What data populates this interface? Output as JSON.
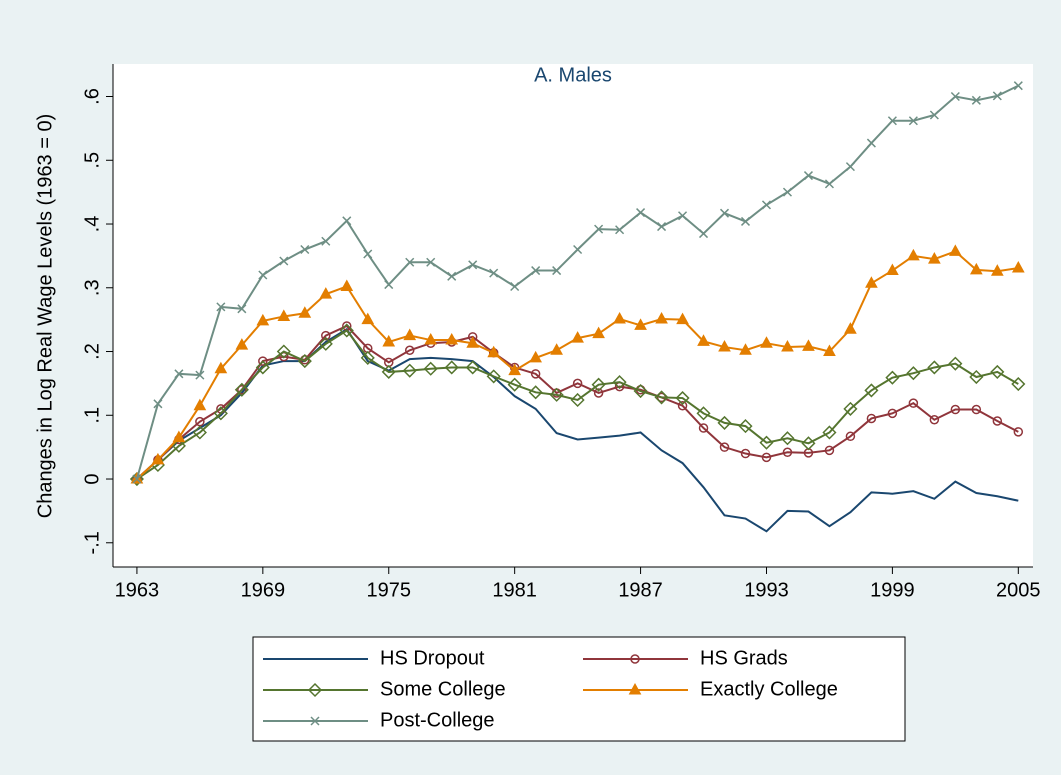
{
  "chart_data": {
    "type": "line",
    "title": "A. Males",
    "y_label": "Changes in Log Real Wage Levels (1963 = 0)",
    "x": [
      1963,
      1964,
      1965,
      1966,
      1967,
      1968,
      1969,
      1970,
      1971,
      1972,
      1973,
      1974,
      1975,
      1976,
      1977,
      1978,
      1979,
      1980,
      1981,
      1982,
      1983,
      1984,
      1985,
      1986,
      1987,
      1988,
      1989,
      1990,
      1991,
      1992,
      1993,
      1994,
      1995,
      1996,
      1997,
      1998,
      1999,
      2000,
      2001,
      2002,
      2003,
      2004,
      2005
    ],
    "series": [
      {
        "name": "HS Dropout",
        "color": "#1a476f",
        "marker": "none",
        "values": [
          0,
          0.03,
          0.06,
          0.08,
          0.1,
          0.135,
          0.178,
          0.185,
          0.185,
          0.215,
          0.235,
          0.185,
          0.17,
          0.188,
          0.19,
          0.188,
          0.185,
          0.16,
          0.13,
          0.11,
          0.072,
          0.062,
          0.065,
          0.068,
          0.073,
          0.045,
          0.025,
          -0.013,
          -0.057,
          -0.062,
          -0.082,
          -0.05,
          -0.051,
          -0.074,
          -0.052,
          -0.021,
          -0.023,
          -0.019,
          -0.031,
          -0.004,
          -0.022,
          -0.027,
          -0.034
        ]
      },
      {
        "name": "HS Grads",
        "color": "#90353b",
        "marker": "circle",
        "values": [
          0,
          0.03,
          0.062,
          0.09,
          0.11,
          0.14,
          0.185,
          0.192,
          0.187,
          0.225,
          0.24,
          0.205,
          0.183,
          0.202,
          0.213,
          0.215,
          0.223,
          0.198,
          0.175,
          0.165,
          0.135,
          0.15,
          0.135,
          0.145,
          0.14,
          0.128,
          0.115,
          0.08,
          0.05,
          0.04,
          0.034,
          0.042,
          0.041,
          0.045,
          0.067,
          0.095,
          0.103,
          0.119,
          0.093,
          0.109,
          0.109,
          0.091,
          0.074
        ]
      },
      {
        "name": "Some College",
        "color": "#55752f",
        "marker": "diamond",
        "values": [
          0,
          0.022,
          0.052,
          0.073,
          0.103,
          0.14,
          0.175,
          0.2,
          0.185,
          0.212,
          0.233,
          0.19,
          0.168,
          0.17,
          0.173,
          0.175,
          0.175,
          0.161,
          0.148,
          0.136,
          0.132,
          0.124,
          0.148,
          0.152,
          0.138,
          0.128,
          0.127,
          0.103,
          0.088,
          0.083,
          0.057,
          0.064,
          0.056,
          0.073,
          0.11,
          0.139,
          0.159,
          0.166,
          0.175,
          0.181,
          0.16,
          0.168,
          0.149
        ]
      },
      {
        "name": "Exactly College",
        "color": "#e37e00",
        "marker": "triangle",
        "values": [
          0,
          0.03,
          0.065,
          0.115,
          0.173,
          0.21,
          0.248,
          0.255,
          0.26,
          0.29,
          0.302,
          0.25,
          0.215,
          0.225,
          0.218,
          0.218,
          0.213,
          0.198,
          0.17,
          0.19,
          0.202,
          0.221,
          0.228,
          0.251,
          0.241,
          0.251,
          0.25,
          0.216,
          0.207,
          0.202,
          0.213,
          0.207,
          0.208,
          0.2,
          0.235,
          0.307,
          0.327,
          0.35,
          0.345,
          0.357,
          0.328,
          0.326,
          0.331
        ]
      },
      {
        "name": "Post-College",
        "color": "#6e8e84",
        "marker": "x",
        "values": [
          0,
          0.118,
          0.165,
          0.163,
          0.27,
          0.267,
          0.32,
          0.342,
          0.36,
          0.373,
          0.405,
          0.353,
          0.305,
          0.34,
          0.34,
          0.318,
          0.336,
          0.323,
          0.302,
          0.327,
          0.327,
          0.36,
          0.392,
          0.391,
          0.418,
          0.396,
          0.413,
          0.385,
          0.417,
          0.404,
          0.43,
          0.45,
          0.476,
          0.463,
          0.49,
          0.527,
          0.562,
          0.562,
          0.571,
          0.6,
          0.594,
          0.601,
          0.617
        ]
      }
    ],
    "xlim": [
      1961.86,
      2005.7
    ],
    "xticks": [
      1963,
      1969,
      1975,
      1981,
      1987,
      1993,
      1999,
      2005
    ],
    "ylim": [
      -0.138,
      0.651
    ],
    "yticks": [
      {
        "value": -0.1,
        "label": "-.1"
      },
      0,
      {
        "value": 0.1,
        "label": ".1"
      },
      {
        "value": 0.2,
        "label": ".2"
      },
      {
        "value": 0.3,
        "label": ".3"
      },
      {
        "value": 0.4,
        "label": ".4"
      },
      {
        "value": 0.5,
        "label": ".5"
      },
      {
        "value": 0.6,
        "label": ".6"
      }
    ],
    "legend_position": "bottom"
  }
}
